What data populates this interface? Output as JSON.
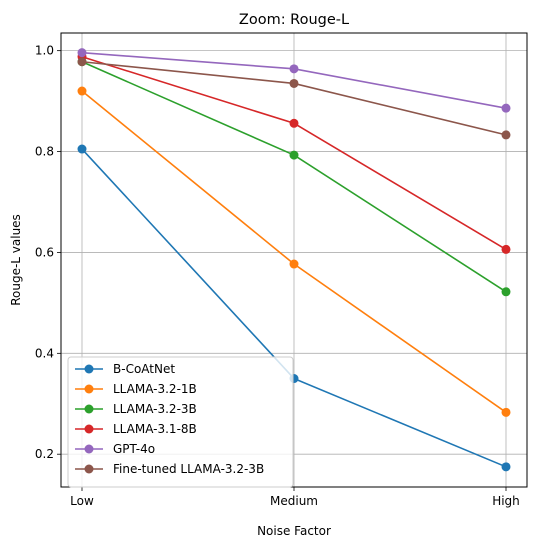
{
  "chart_data": {
    "type": "line",
    "title": "Zoom: Rouge-L",
    "xlabel": "Noise Factor",
    "ylabel": "Rouge-L values",
    "categories": [
      "Low",
      "Medium",
      "High"
    ],
    "ylim": [
      0.135,
      1.035
    ],
    "yticks": [
      0.2,
      0.4,
      0.6,
      0.8,
      1.0
    ],
    "ytick_labels": [
      "0.2",
      "0.4",
      "0.6",
      "0.8",
      "1.0"
    ],
    "grid": true,
    "legend_position": "lower-left",
    "series": [
      {
        "name": "B-CoAtNet",
        "color": "#1f77b4",
        "values": [
          0.805,
          0.35,
          0.175
        ]
      },
      {
        "name": "LLAMA-3.2-1B",
        "color": "#ff7f0e",
        "values": [
          0.92,
          0.577,
          0.283
        ]
      },
      {
        "name": "LLAMA-3.2-3B",
        "color": "#2ca02c",
        "values": [
          0.978,
          0.793,
          0.522
        ]
      },
      {
        "name": "LLAMA-3.1-8B",
        "color": "#d62728",
        "values": [
          0.988,
          0.856,
          0.606
        ]
      },
      {
        "name": "GPT-4o",
        "color": "#9467bd",
        "values": [
          0.996,
          0.964,
          0.886
        ]
      },
      {
        "name": "Fine-tuned LLAMA-3.2-3B",
        "color": "#8c564b",
        "values": [
          0.978,
          0.935,
          0.833
        ]
      }
    ]
  }
}
